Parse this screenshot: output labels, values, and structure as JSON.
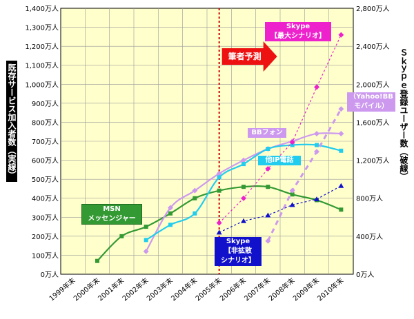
{
  "chart_data": {
    "type": "line",
    "categories": [
      "1999年末",
      "2000年末",
      "2001年末",
      "2002年末",
      "2003年末",
      "2004年末",
      "2005年末",
      "2006年末",
      "2007年末",
      "2008年末",
      "2009年末",
      "2010年末"
    ],
    "left_axis": {
      "label": "既存サービス加入者数（実線）",
      "ticks": [
        "0万人",
        "100万人",
        "200万人",
        "300万人",
        "400万人",
        "500万人",
        "600万人",
        "700万人",
        "800万人",
        "900万人",
        "1,000万人",
        "1,100万人",
        "1,200万人",
        "1,300万人",
        "1,400万人"
      ],
      "ylim": [
        0,
        1400
      ]
    },
    "right_axis": {
      "label": "Skype登録ユーザー数（破線）",
      "ticks": [
        "0万人",
        "400万人",
        "800万人",
        "1,200万人",
        "1,600万人",
        "2,000万人",
        "2,400万人",
        "2,800万人"
      ],
      "ylim": [
        0,
        2800
      ]
    },
    "grid": true,
    "background": "#ffffcc",
    "forecast_start": "2005年末",
    "forecast_label": "筆者予測",
    "series": [
      {
        "name": "MSNメッセンジャー",
        "axis": "left",
        "style": "solid",
        "color": "#339933",
        "marker": "square",
        "values": [
          null,
          70,
          200,
          250,
          320,
          400,
          440,
          460,
          460,
          420,
          390,
          340
        ]
      },
      {
        "name": "BBフォン",
        "axis": "left",
        "style": "solid",
        "color": "#cc99ee",
        "marker": "diamond",
        "values": [
          null,
          null,
          null,
          120,
          350,
          440,
          530,
          600,
          660,
          700,
          740,
          740
        ]
      },
      {
        "name": "他IP電話",
        "axis": "left",
        "style": "solid",
        "color": "#22ccee",
        "marker": "square",
        "values": [
          null,
          null,
          null,
          180,
          260,
          320,
          510,
          580,
          660,
          680,
          680,
          650
        ]
      },
      {
        "name": "Skype【最大シナリオ】",
        "axis": "right",
        "style": "dashed",
        "color": "#ee22cc",
        "marker": "diamond",
        "values": [
          null,
          null,
          null,
          null,
          null,
          null,
          540,
          800,
          1110,
          1390,
          1970,
          2520
        ]
      },
      {
        "name": "(Yahoo!BBモバイル)",
        "axis": "right",
        "style": "dashed",
        "color": "#cc99ee",
        "marker": "diamond",
        "values": [
          null,
          null,
          null,
          null,
          null,
          null,
          null,
          null,
          350,
          880,
          1290,
          1740
        ]
      },
      {
        "name": "Skype【非拡散シナリオ】",
        "axis": "right",
        "style": "dashed",
        "color": "#1111cc",
        "marker": "triangle",
        "values": [
          null,
          null,
          null,
          null,
          null,
          null,
          440,
          560,
          620,
          730,
          790,
          930
        ]
      }
    ]
  },
  "labels": {
    "left_axis_label": "既存サービス加入者数（実線）",
    "right_axis_label": "Ｓｋｙｐｅ登録ユーザー数（破線）",
    "forecast": "筆者予測",
    "msn_line1": "MSN",
    "msn_line2": "メッセンジャー",
    "bb_phone": "BBフォン",
    "other_ip": "他IP電話",
    "skype_max_line1": "Skype",
    "skype_max_line2": "【最大シナリオ】",
    "yahoo_line1": "（Yahoo!BB",
    "yahoo_line2": "モバイル）",
    "skype_min_line1": "Skype",
    "skype_min_line2": "【非拡散",
    "skype_min_line3": "シナリオ】"
  },
  "colors": {
    "msn": "#339933",
    "bb_phone": "#cc99ee",
    "other_ip": "#22ccee",
    "skype_max": "#ee22cc",
    "skype_min": "#1111cc",
    "forecast_arrow": "#ee1111",
    "forecast_line": "#cc0000"
  }
}
